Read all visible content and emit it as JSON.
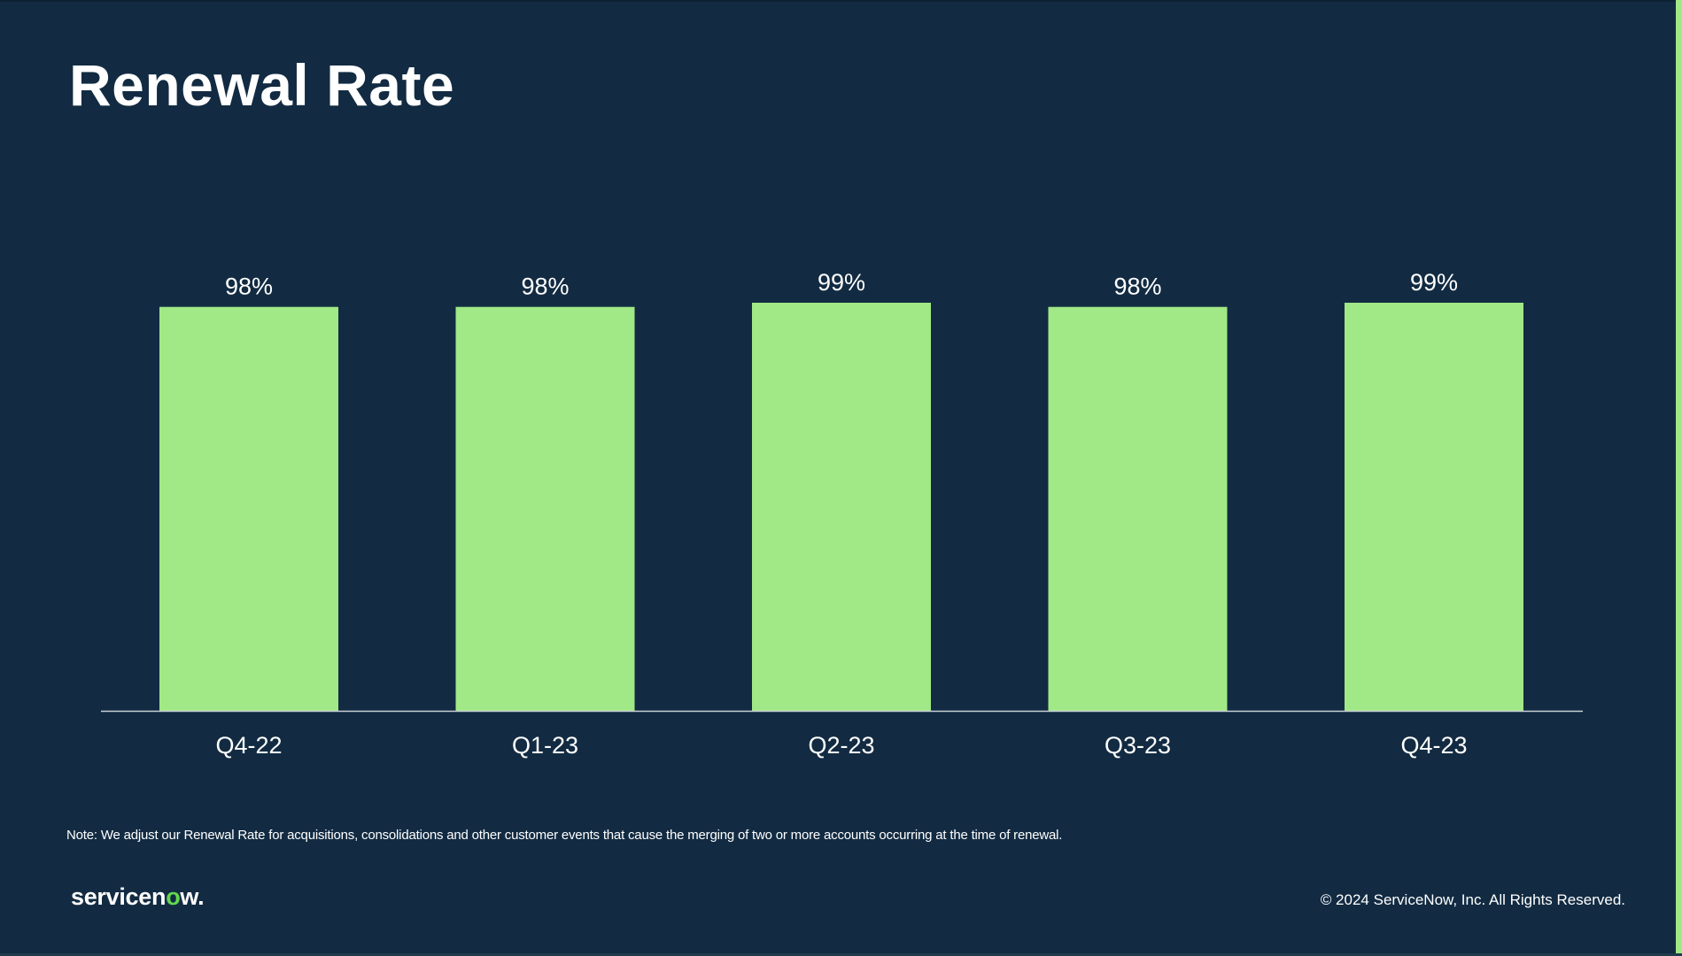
{
  "slide": {
    "title": "Renewal Rate",
    "note": "Note: We adjust our Renewal Rate for acquisitions, consolidations and other customer events that cause the merging of two or more accounts occurring at the time of renewal.",
    "logo": {
      "text_before": "servicen",
      "text_accent": "o",
      "text_after": "w."
    },
    "copyright": "© 2024 ServiceNow, Inc. All Rights Reserved."
  },
  "colors": {
    "background": "#122b42",
    "bar": "#a1e886",
    "accent": "#a1e886",
    "axis": "#c8d0d6",
    "text": "#ffffff"
  },
  "chart_data": {
    "type": "bar",
    "title": "Renewal Rate",
    "categories": [
      "Q4-22",
      "Q1-23",
      "Q2-23",
      "Q3-23",
      "Q4-23"
    ],
    "values": [
      98,
      98,
      99,
      98,
      99
    ],
    "data_labels": [
      "98%",
      "98%",
      "99%",
      "98%",
      "99%"
    ],
    "unit": "%",
    "grid": false,
    "legend": "none"
  }
}
